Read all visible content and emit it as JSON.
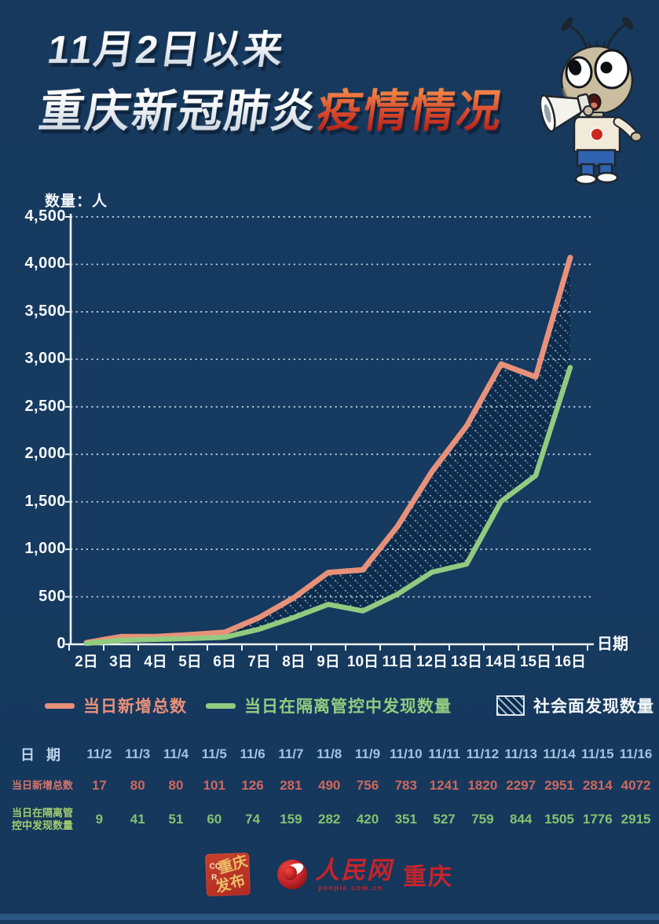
{
  "title": {
    "line1": "11月2日以来",
    "line2_white": "重庆新冠肺炎",
    "line2_accent": "疫情情况"
  },
  "chart": {
    "unit_label": "数量：人",
    "x_axis_title": "日期"
  },
  "chart_data": {
    "type": "line",
    "categories": [
      "2日",
      "3日",
      "4日",
      "5日",
      "6日",
      "7日",
      "8日",
      "9日",
      "10日",
      "11日",
      "12日",
      "13日",
      "14日",
      "15日",
      "16日"
    ],
    "series": [
      {
        "name": "当日新增总数",
        "color": "#e8917a",
        "values": [
          17,
          80,
          80,
          101,
          126,
          281,
          490,
          756,
          783,
          1241,
          1820,
          2297,
          2951,
          2814,
          4072
        ]
      },
      {
        "name": "当日在隔离管控中发现数量",
        "color": "#92cb80",
        "values": [
          9,
          41,
          51,
          60,
          74,
          159,
          282,
          420,
          351,
          527,
          759,
          844,
          1505,
          1776,
          2915
        ]
      }
    ],
    "between_area": {
      "label": "社会面发现数量",
      "style": "diagonal-dotted-hatch"
    },
    "title": "11月2日以来重庆新冠肺炎疫情情况",
    "xlabel": "日期",
    "ylabel": "数量：人",
    "ylim": [
      0,
      4500
    ],
    "ytick_step": 500,
    "grid": "dotted-horizontal"
  },
  "legend": {
    "items": [
      {
        "label": "当日新增总数",
        "swatch": "line"
      },
      {
        "label": "当日在隔离管控中发现数量",
        "swatch": "line"
      },
      {
        "label": "社会面发现数量",
        "swatch": "hatch"
      }
    ]
  },
  "table": {
    "header_label": "日 期",
    "dates": [
      "11/2",
      "11/3",
      "11/4",
      "11/5",
      "11/6",
      "11/7",
      "11/8",
      "11/9",
      "11/10",
      "11/11",
      "11/12",
      "11/13",
      "11/14",
      "11/15",
      "11/16"
    ],
    "rows": [
      {
        "label_lines": [
          "当日新增总数"
        ],
        "color": "#d4756a",
        "value_color": "#cf675d",
        "values": [
          17,
          80,
          80,
          101,
          126,
          281,
          490,
          756,
          783,
          1241,
          1820,
          2297,
          2951,
          2814,
          4072
        ]
      },
      {
        "label_lines": [
          "当日在隔离管",
          "控中发现数量"
        ],
        "color": "#a2ce70",
        "value_color": "#86c170",
        "values": [
          9,
          41,
          51,
          60,
          74,
          159,
          282,
          420,
          351,
          527,
          759,
          844,
          1505,
          1776,
          2915
        ]
      }
    ]
  },
  "footer": {
    "seal": {
      "text_top": "重庆",
      "text_bottom": "发布",
      "letters_top": "CQ",
      "letters_bottom": "R"
    },
    "pd": {
      "name": "人民网",
      "domain": "people.com.cn",
      "region": "重庆"
    }
  },
  "colors": {
    "background": "#16395e",
    "total_line": "#e8917a",
    "isolation_line": "#92cb80",
    "hatch_area_fill": "#0d2b4b",
    "hatch_line": "#8fb4d6",
    "axis": "#eef4f6",
    "grid": "#cfe3f2",
    "title_accent_top": "#f08245",
    "title_accent_bottom": "#b01a15"
  }
}
